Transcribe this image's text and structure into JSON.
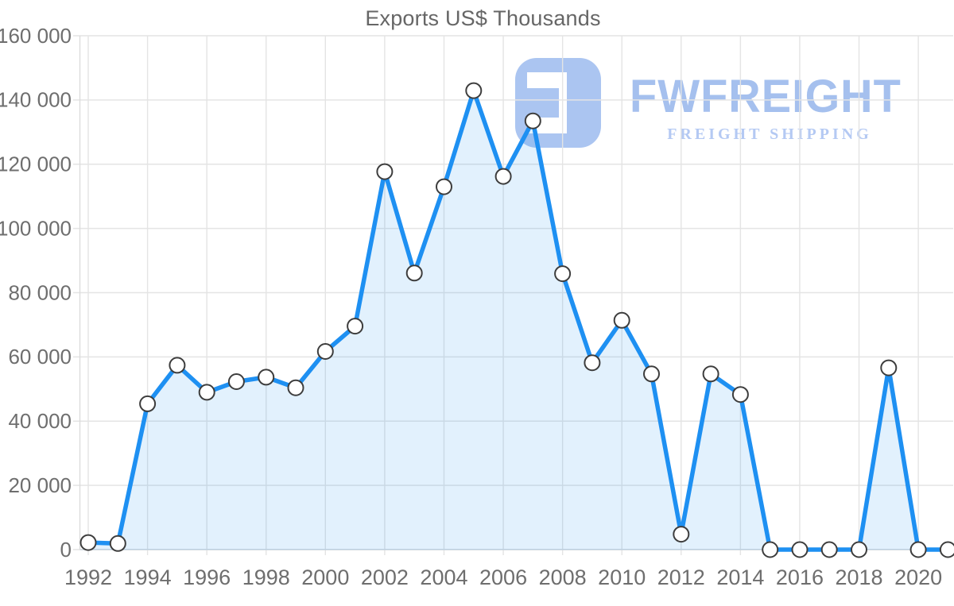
{
  "chart_data": {
    "type": "area",
    "title": "Exports US$ Thousands",
    "xlabel": "",
    "ylabel": "",
    "x": [
      1992,
      1993,
      1994,
      1995,
      1996,
      1997,
      1998,
      1999,
      2000,
      2001,
      2002,
      2003,
      2004,
      2005,
      2006,
      2007,
      2008,
      2009,
      2010,
      2011,
      2012,
      2013,
      2014,
      2015,
      2016,
      2017,
      2018,
      2019,
      2020,
      2021
    ],
    "series": [
      {
        "name": "Exports US$ Thousands",
        "values": [
          2200,
          1900,
          45400,
          57400,
          49000,
          52300,
          53700,
          50400,
          61700,
          69600,
          117700,
          86100,
          113000,
          142900,
          116200,
          133500,
          85900,
          58200,
          71400,
          54700,
          4800,
          54700,
          48300,
          0,
          0,
          0,
          0,
          56600,
          0,
          0
        ]
      }
    ],
    "ylim": [
      0,
      160000
    ],
    "ytick_values": [
      0,
      20000,
      40000,
      60000,
      80000,
      100000,
      120000,
      140000,
      160000
    ],
    "ytick_labels": [
      "0",
      "20 000",
      "40 000",
      "60 000",
      "80 000",
      "100 000",
      "120 000",
      "140 000",
      "160 000"
    ],
    "xtick_years": [
      1992,
      1994,
      1996,
      1998,
      2000,
      2002,
      2004,
      2006,
      2008,
      2010,
      2012,
      2014,
      2016,
      2018,
      2020
    ],
    "xtick_labels": [
      "1992",
      "1994",
      "1996",
      "1998",
      "2000",
      "2002",
      "2004",
      "2006",
      "2008",
      "2010",
      "2012",
      "2014",
      "2016",
      "2018",
      "2020"
    ],
    "grid": true,
    "legend": "none",
    "colors": {
      "line": "#1e90f2",
      "fill": "rgba(30,144,242,0.13)",
      "marker_fill": "#ffffff",
      "marker_stroke": "#3d3d3d",
      "grid": "#e4e4e4",
      "axis_y": "#dcdcdc",
      "axis_x": "#ccd5de",
      "tick_label": "#6e6e6e",
      "title": "#666666"
    }
  },
  "watermark": {
    "name": "FWFREIGHT",
    "tagline": "FREIGHT SHIPPING",
    "mark_color": "#abc5f1",
    "name_color": "#a5c0ee",
    "tagline_color": "#b4c9f3"
  }
}
